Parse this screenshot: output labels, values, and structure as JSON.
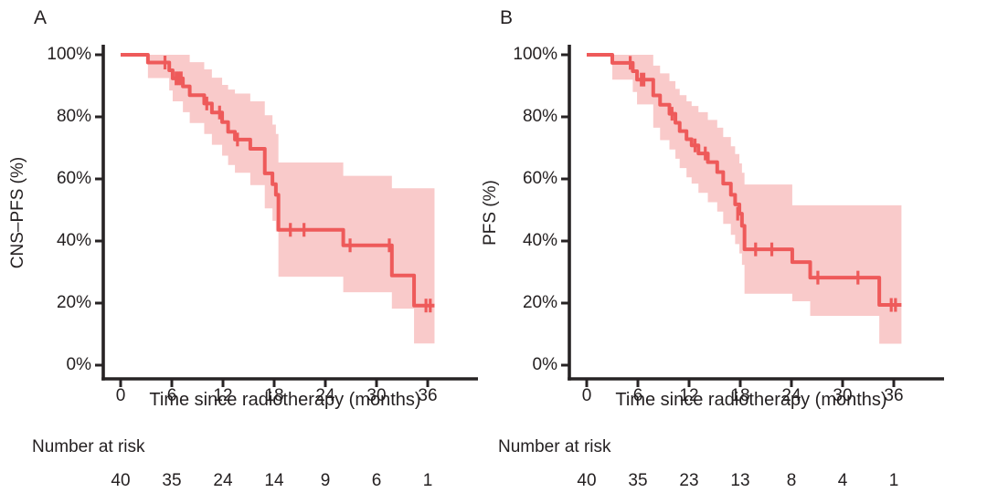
{
  "figure": {
    "background": "#ffffff",
    "colors": {
      "curve": "#ee5a5a",
      "band": "#f9caca",
      "axis": "#272324",
      "text": "#231f20"
    }
  },
  "chart_data": [
    {
      "type": "line",
      "subtype": "kaplan-meier-step",
      "panel_label": "A",
      "title": "",
      "xlabel": "Time since radiotherapy (months)",
      "ylabel": "CNS–PFS (%)",
      "xlim": [
        0,
        42
      ],
      "ylim": [
        0,
        100
      ],
      "grid": false,
      "legend": "none",
      "x_tick_values": [
        0,
        6,
        12,
        18,
        24,
        30,
        36
      ],
      "x_tick_labels": [
        "0",
        "6",
        "12",
        "18",
        "24",
        "30",
        "36"
      ],
      "y_tick_values": [
        100,
        80,
        60,
        40,
        20,
        0
      ],
      "y_tick_labels": [
        "100%",
        "80%",
        "60%",
        "40%",
        "20%",
        "0%"
      ],
      "survival_steps": [
        [
          0,
          100
        ],
        [
          3.2,
          97.5
        ],
        [
          5.7,
          95.0
        ],
        [
          6.1,
          92.4
        ],
        [
          7.3,
          89.8
        ],
        [
          8.1,
          87.0
        ],
        [
          9.8,
          84.3
        ],
        [
          10.7,
          81.4
        ],
        [
          11.9,
          78.3
        ],
        [
          12.6,
          75.2
        ],
        [
          13.4,
          72.7
        ],
        [
          15.2,
          69.7
        ],
        [
          16.9,
          61.8
        ],
        [
          17.8,
          58.3
        ],
        [
          18.2,
          54.9
        ],
        [
          18.5,
          43.6
        ],
        [
          26.1,
          38.6
        ],
        [
          31.8,
          28.9
        ],
        [
          34.4,
          19.2
        ]
      ],
      "end_time": 36.8,
      "censor_marks": [
        [
          5.2,
          97.5
        ],
        [
          6.5,
          92.4
        ],
        [
          6.8,
          92.4
        ],
        [
          7.1,
          92.4
        ],
        [
          10.1,
          84.3
        ],
        [
          11.6,
          81.4
        ],
        [
          13.7,
          72.7
        ],
        [
          19.9,
          43.6
        ],
        [
          21.5,
          43.6
        ],
        [
          26.9,
          38.6
        ],
        [
          31.5,
          38.6
        ],
        [
          35.8,
          19.2
        ],
        [
          36.3,
          19.2
        ]
      ],
      "ci_band": [
        [
          3.2,
          92.5,
          100
        ],
        [
          5.7,
          88.5,
          100
        ],
        [
          6.1,
          85.0,
          100
        ],
        [
          7.3,
          81.5,
          100
        ],
        [
          8.1,
          78.0,
          97.6
        ],
        [
          9.8,
          74.5,
          95.3
        ],
        [
          10.7,
          71.0,
          92.6
        ],
        [
          11.9,
          67.5,
          90.3
        ],
        [
          12.6,
          64.5,
          88.8
        ],
        [
          13.4,
          62.0,
          87.5
        ],
        [
          15.2,
          58.0,
          85.0
        ],
        [
          16.9,
          50.5,
          80.5
        ],
        [
          17.8,
          46.5,
          77.5
        ],
        [
          18.2,
          43.0,
          74.5
        ],
        [
          18.5,
          28.5,
          65.3
        ],
        [
          26.1,
          23.5,
          61.0
        ],
        [
          31.8,
          18.2,
          57.0
        ],
        [
          34.4,
          7.0,
          57.0
        ]
      ],
      "number_at_risk": {
        "label": "Number at risk",
        "times": [
          0,
          6,
          12,
          18,
          24,
          30,
          36
        ],
        "counts": [
          "40",
          "35",
          "24",
          "14",
          "9",
          "6",
          "1"
        ]
      }
    },
    {
      "type": "line",
      "subtype": "kaplan-meier-step",
      "panel_label": "B",
      "title": "",
      "xlabel": "Time since radiotherapy (months)",
      "ylabel": "PFS (%)",
      "xlim": [
        0,
        42
      ],
      "ylim": [
        0,
        100
      ],
      "grid": false,
      "legend": "none",
      "x_tick_values": [
        0,
        6,
        12,
        18,
        24,
        30,
        36
      ],
      "x_tick_labels": [
        "0",
        "6",
        "12",
        "18",
        "24",
        "30",
        "36"
      ],
      "y_tick_values": [
        100,
        80,
        60,
        40,
        20,
        0
      ],
      "y_tick_labels": [
        "100%",
        "80%",
        "60%",
        "40%",
        "20%",
        "0%"
      ],
      "survival_steps": [
        [
          0,
          100
        ],
        [
          3.0,
          97.4
        ],
        [
          5.4,
          94.7
        ],
        [
          5.9,
          92.0
        ],
        [
          7.8,
          86.9
        ],
        [
          8.6,
          83.9
        ],
        [
          9.7,
          81.0
        ],
        [
          10.4,
          78.1
        ],
        [
          10.9,
          75.4
        ],
        [
          11.7,
          72.8
        ],
        [
          12.3,
          70.8
        ],
        [
          13.1,
          68.2
        ],
        [
          14.2,
          65.4
        ],
        [
          15.3,
          62.2
        ],
        [
          16.0,
          58.5
        ],
        [
          16.9,
          54.9
        ],
        [
          17.4,
          51.8
        ],
        [
          17.9,
          48.8
        ],
        [
          18.2,
          44.9
        ],
        [
          18.5,
          37.3
        ],
        [
          24.1,
          33.2
        ],
        [
          26.2,
          28.2
        ],
        [
          34.3,
          19.4
        ]
      ],
      "end_time": 36.9,
      "censor_marks": [
        [
          5.1,
          97.4
        ],
        [
          6.4,
          92.0
        ],
        [
          6.7,
          92.0
        ],
        [
          10.0,
          81.0
        ],
        [
          12.7,
          70.8
        ],
        [
          13.9,
          68.2
        ],
        [
          17.7,
          48.8
        ],
        [
          19.8,
          37.3
        ],
        [
          21.7,
          37.3
        ],
        [
          27.1,
          28.2
        ],
        [
          31.8,
          28.2
        ],
        [
          35.7,
          19.4
        ],
        [
          36.2,
          19.4
        ]
      ],
      "ci_band": [
        [
          3.0,
          92.0,
          100
        ],
        [
          5.4,
          88.0,
          100
        ],
        [
          5.9,
          84.0,
          100
        ],
        [
          7.8,
          76.5,
          96.5
        ],
        [
          8.6,
          72.5,
          94.0
        ],
        [
          9.7,
          69.5,
          91.5
        ],
        [
          10.4,
          66.5,
          89.0
        ],
        [
          10.9,
          63.5,
          87.0
        ],
        [
          11.7,
          60.5,
          85.0
        ],
        [
          12.3,
          58.5,
          83.5
        ],
        [
          13.1,
          55.5,
          81.5
        ],
        [
          14.2,
          52.5,
          79.0
        ],
        [
          15.3,
          49.5,
          76.5
        ],
        [
          16.0,
          45.5,
          73.5
        ],
        [
          16.9,
          42.0,
          70.5
        ],
        [
          17.4,
          39.0,
          68.0
        ],
        [
          17.9,
          36.0,
          65.0
        ],
        [
          18.2,
          32.3,
          62.0
        ],
        [
          18.5,
          23.0,
          58.2
        ],
        [
          24.1,
          20.6,
          51.5
        ],
        [
          26.2,
          15.9,
          51.5
        ],
        [
          34.3,
          6.9,
          51.5
        ]
      ],
      "number_at_risk": {
        "label": "Number at risk",
        "times": [
          0,
          6,
          12,
          18,
          24,
          30,
          36
        ],
        "counts": [
          "40",
          "35",
          "23",
          "13",
          "8",
          "4",
          "1"
        ]
      }
    }
  ]
}
